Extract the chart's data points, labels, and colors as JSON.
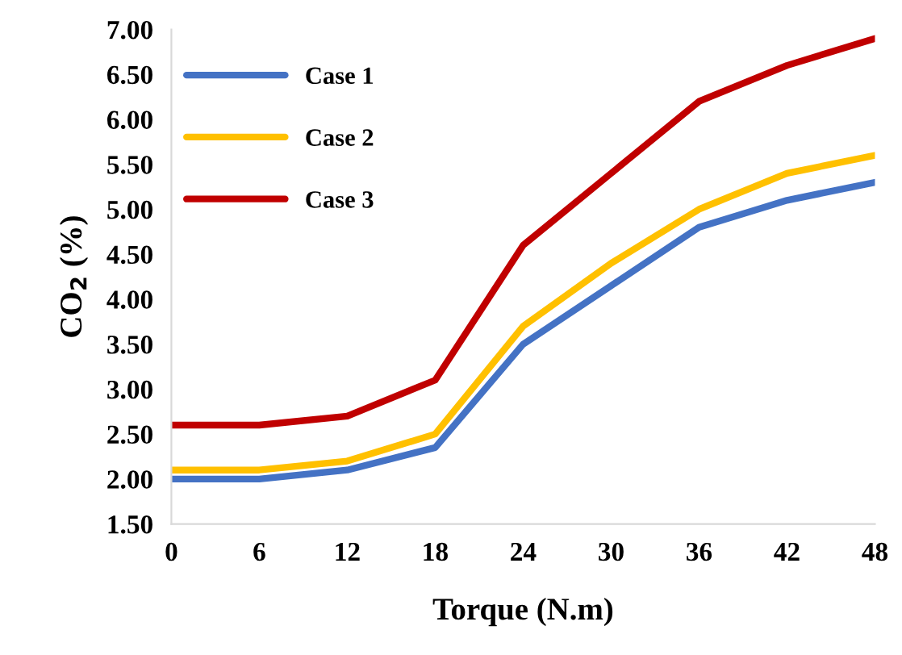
{
  "chart_data": {
    "type": "line",
    "xlabel": "Torque (N.m)",
    "ylabel": "CO$_{2}$ (%)",
    "x": [
      0,
      6,
      12,
      18,
      24,
      30,
      36,
      42,
      48
    ],
    "series": [
      {
        "name": "Case 1",
        "color": "#4472c4",
        "values": [
          2.0,
          2.0,
          2.1,
          2.35,
          3.5,
          4.15,
          4.8,
          5.1,
          5.3
        ]
      },
      {
        "name": "Case 2",
        "color": "#ffc000",
        "values": [
          2.1,
          2.1,
          2.2,
          2.5,
          3.7,
          4.4,
          5.0,
          5.4,
          5.6
        ]
      },
      {
        "name": "Case 3",
        "color": "#c00000",
        "values": [
          2.6,
          2.6,
          2.7,
          3.1,
          4.6,
          5.4,
          6.2,
          6.6,
          6.9
        ]
      }
    ],
    "xlim": [
      0,
      48
    ],
    "xticks": [
      0,
      6,
      12,
      18,
      24,
      30,
      36,
      42,
      48
    ],
    "ylim": [
      1.5,
      7.0
    ],
    "yticks": [
      {
        "value": 1.5,
        "label": "1.50"
      },
      {
        "value": 2.0,
        "label": "2.00"
      },
      {
        "value": 2.5,
        "label": "2.50"
      },
      {
        "value": 3.0,
        "label": "3.00"
      },
      {
        "value": 3.5,
        "label": "3.50"
      },
      {
        "value": 4.0,
        "label": "4.00"
      },
      {
        "value": 4.5,
        "label": "4.50"
      },
      {
        "value": 5.0,
        "label": "5.00"
      },
      {
        "value": 5.5,
        "label": "5.50"
      },
      {
        "value": 6.0,
        "label": "6.00"
      },
      {
        "value": 6.5,
        "label": "6.50"
      },
      {
        "value": 7.0,
        "label": "7.00"
      }
    ],
    "grid": false,
    "legend": "top left",
    "marker": "none",
    "line_style": "solid"
  }
}
